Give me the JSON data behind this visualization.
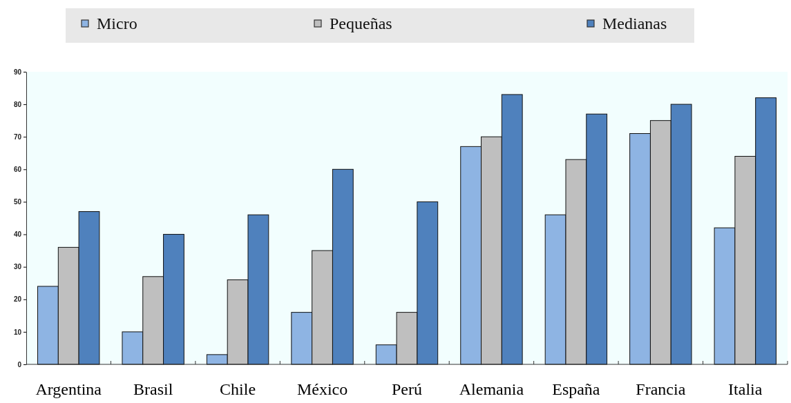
{
  "chart_data": {
    "type": "bar",
    "categories": [
      "Argentina",
      "Brasil",
      "Chile",
      "México",
      "Perú",
      "Alemania",
      "España",
      "Francia",
      "Italia"
    ],
    "series": [
      {
        "name": "Micro",
        "color": "#8eb4e3",
        "values": [
          24,
          10,
          3,
          16,
          6,
          67,
          46,
          71,
          42
        ]
      },
      {
        "name": "Pequeñas",
        "color": "#bfbfbf",
        "values": [
          36,
          27,
          26,
          35,
          16,
          70,
          63,
          75,
          64
        ]
      },
      {
        "name": "Medianas",
        "color": "#4f81bd",
        "values": [
          47,
          40,
          46,
          60,
          50,
          83,
          77,
          80,
          82
        ]
      }
    ],
    "ylim": [
      0,
      90
    ],
    "yticks": [
      0,
      10,
      20,
      30,
      40,
      50,
      60,
      70,
      80,
      90
    ],
    "grid": false,
    "legend": "top"
  }
}
